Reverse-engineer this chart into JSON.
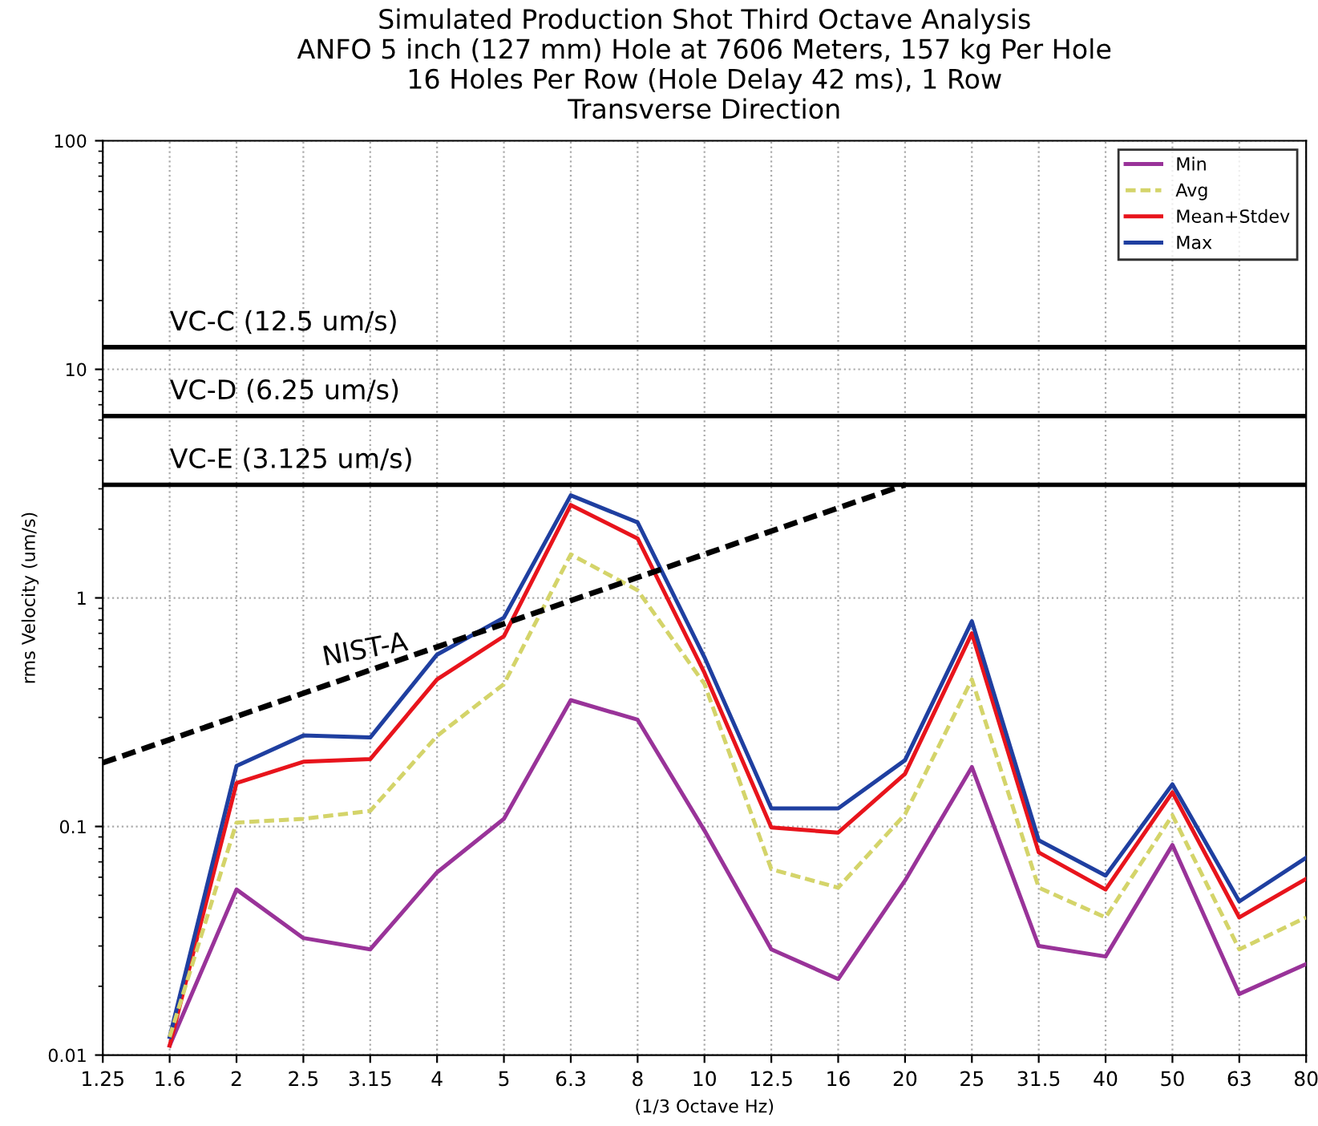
{
  "chart_data": {
    "type": "line",
    "title": "Simulated Production Shot Third Octave Analysis\nANFO 5 inch (127 mm) Hole at 7606 Meters, 157 kg Per Hole\n16 Holes Per Row (Hole Delay 42 ms), 1 Row\nTransverse Direction",
    "xlabel": "(1/3 Octave Hz)",
    "ylabel": "rms Velocity (um/s)",
    "categories": [
      "1.25",
      "1.6",
      "2",
      "2.5",
      "3.15",
      "4",
      "5",
      "6.3",
      "8",
      "10",
      "12.5",
      "16",
      "20",
      "25",
      "31.5",
      "40",
      "50",
      "63",
      "80"
    ],
    "series": [
      {
        "name": "Min",
        "color": "#993399",
        "line_style": "solid",
        "values": [
          null,
          0.011,
          0.053,
          0.0325,
          0.029,
          0.063,
          0.108,
          0.357,
          0.293,
          0.096,
          0.029,
          0.0215,
          0.058,
          0.182,
          0.03,
          0.027,
          0.083,
          0.0185,
          0.025
        ]
      },
      {
        "name": "Avg",
        "color": "#d4d46a",
        "line_style": "dashed",
        "values": [
          null,
          0.012,
          0.104,
          0.108,
          0.117,
          0.249,
          0.42,
          1.55,
          1.08,
          0.42,
          0.065,
          0.054,
          0.113,
          0.44,
          0.054,
          0.04,
          0.112,
          0.029,
          0.04
        ]
      },
      {
        "name": "Mean+Stdev",
        "color": "#e8141c",
        "line_style": "solid",
        "values": [
          null,
          0.011,
          0.155,
          0.192,
          0.197,
          0.44,
          0.68,
          2.55,
          1.82,
          0.47,
          0.099,
          0.094,
          0.17,
          0.7,
          0.077,
          0.053,
          0.141,
          0.04,
          0.059
        ]
      },
      {
        "name": "Max",
        "color": "#1f3fa0",
        "line_style": "solid",
        "values": [
          null,
          0.012,
          0.184,
          0.25,
          0.245,
          0.565,
          0.82,
          2.81,
          2.14,
          0.55,
          0.12,
          0.12,
          0.195,
          0.79,
          0.087,
          0.061,
          0.153,
          0.047,
          0.073
        ]
      },
      {
        "name": "NIST-A",
        "type": "line",
        "color": "#000000",
        "line_style": "dashed",
        "x": [
          "1.25",
          "20"
        ],
        "values": [
          0.19,
          3.125
        ]
      }
    ],
    "ref_lines": [
      {
        "axis": "y",
        "value": 12.5,
        "label": "VC-C (12.5 um/s)",
        "color": "#000000",
        "line_style": "solid"
      },
      {
        "axis": "y",
        "value": 6.25,
        "label": "VC-D (6.25 um/s)",
        "color": "#000000",
        "line_style": "solid"
      },
      {
        "axis": "y",
        "value": 3.125,
        "label": "VC-E (3.125 um/s)",
        "color": "#000000",
        "line_style": "solid"
      }
    ],
    "log": "y",
    "ylim": [
      0.01,
      100
    ],
    "yticks": [
      0.01,
      0.1,
      1,
      10,
      100
    ],
    "grid": true,
    "legend": "top right"
  }
}
